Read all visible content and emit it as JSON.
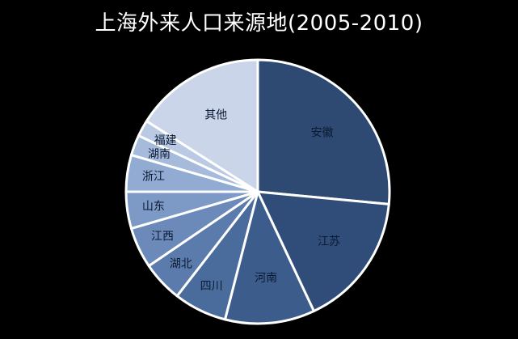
{
  "chart_data": {
    "type": "pie",
    "title": "上海外来人口来源地(2005-2010)",
    "categories": [
      "安徽",
      "江苏",
      "河南",
      "四川",
      "湖北",
      "江西",
      "山东",
      "浙江",
      "湖南",
      "福建",
      "其他"
    ],
    "values": [
      26.5,
      16.5,
      11.0,
      6.5,
      5.0,
      5.0,
      4.5,
      4.5,
      2.5,
      2.0,
      16.0
    ],
    "colors": [
      "#2e4a72",
      "#2f4d78",
      "#3c5d8c",
      "#4a6c9c",
      "#5a7bab",
      "#6b8aba",
      "#7d9ac6",
      "#92abd2",
      "#a6bbdc",
      "#bac9e4",
      "#cbd5ea"
    ],
    "label_color": "#0b1a33",
    "start_angle": "top",
    "direction": "clockwise",
    "legend": "none",
    "labels": "inside slices"
  }
}
